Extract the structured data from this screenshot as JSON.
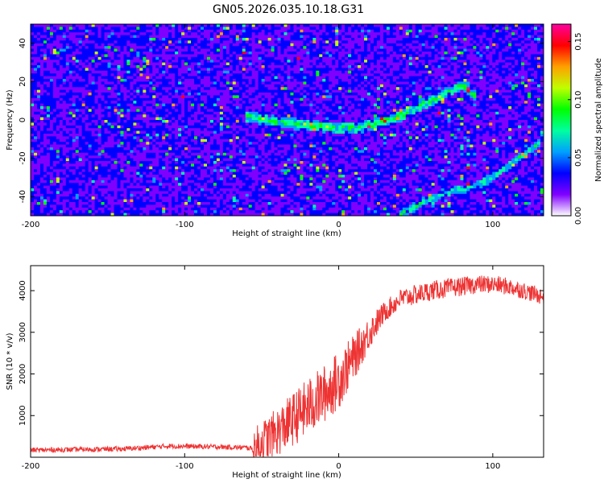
{
  "title": "GN05.2026.035.10.18.G31",
  "chart_data": [
    {
      "type": "heatmap",
      "name": "spectrogram",
      "xlabel": "Height of straight line (km)",
      "ylabel": "Frequency (Hz)",
      "xlim": [
        -200,
        133
      ],
      "ylim": [
        -50,
        50
      ],
      "xticks": [
        -200,
        -100,
        0,
        100
      ],
      "yticks": [
        -40,
        -20,
        0,
        20,
        40
      ],
      "colorbar": {
        "label": "Normalized spectral amplitude",
        "range": [
          0,
          0.165
        ],
        "ticks": [
          0.0,
          0.05,
          0.1,
          0.15
        ],
        "tick_labels": [
          "0.00",
          "0.05",
          "0.10",
          "0.15"
        ],
        "stops": [
          "#ffffff",
          "#8000ff",
          "#0000ff",
          "#00a0ff",
          "#00ffa0",
          "#00ff00",
          "#c0ff00",
          "#ffa000",
          "#ff0000",
          "#ff00a0"
        ]
      },
      "ridge_upper": {
        "x": [
          -60,
          -40,
          -20,
          0,
          10,
          20,
          30,
          40,
          50,
          60,
          70,
          80,
          90
        ],
        "y": [
          2,
          -1,
          -3,
          -4,
          -4,
          -3,
          -1,
          2,
          6,
          10,
          14,
          18,
          12
        ]
      },
      "ridge_lower": {
        "x": [
          40,
          50,
          60,
          70,
          80,
          90,
          100,
          110,
          120,
          130
        ],
        "y": [
          -49,
          -45,
          -41,
          -38,
          -36,
          -34,
          -30,
          -24,
          -18,
          -12
        ]
      },
      "background_level": 0.03
    },
    {
      "type": "line",
      "name": "snr",
      "xlabel": "Height of straight line (km)",
      "ylabel": "SNR (10 * v/v)",
      "xlim": [
        -200,
        133
      ],
      "ylim": [
        0,
        4600
      ],
      "xticks": [
        -200,
        -100,
        0,
        100
      ],
      "yticks": [
        1000,
        2000,
        3000,
        4000
      ],
      "color": "#ee3333",
      "envelope": {
        "x": [
          -200,
          -140,
          -110,
          -80,
          -60,
          -55,
          -50,
          -40,
          -30,
          -20,
          -10,
          0,
          10,
          20,
          30,
          40,
          50,
          60,
          70,
          80,
          90,
          100,
          110,
          120,
          133
        ],
        "y": [
          170,
          200,
          270,
          250,
          230,
          200,
          350,
          600,
          900,
          1200,
          1500,
          1850,
          2400,
          3000,
          3500,
          3800,
          3900,
          4000,
          4050,
          4100,
          4150,
          4150,
          4100,
          4000,
          3850
        ]
      },
      "noise_amplitude": {
        "x": [
          -200,
          -56,
          -55,
          -20,
          0,
          30,
          133
        ],
        "y": [
          60,
          60,
          500,
          700,
          700,
          250,
          200
        ]
      }
    }
  ]
}
